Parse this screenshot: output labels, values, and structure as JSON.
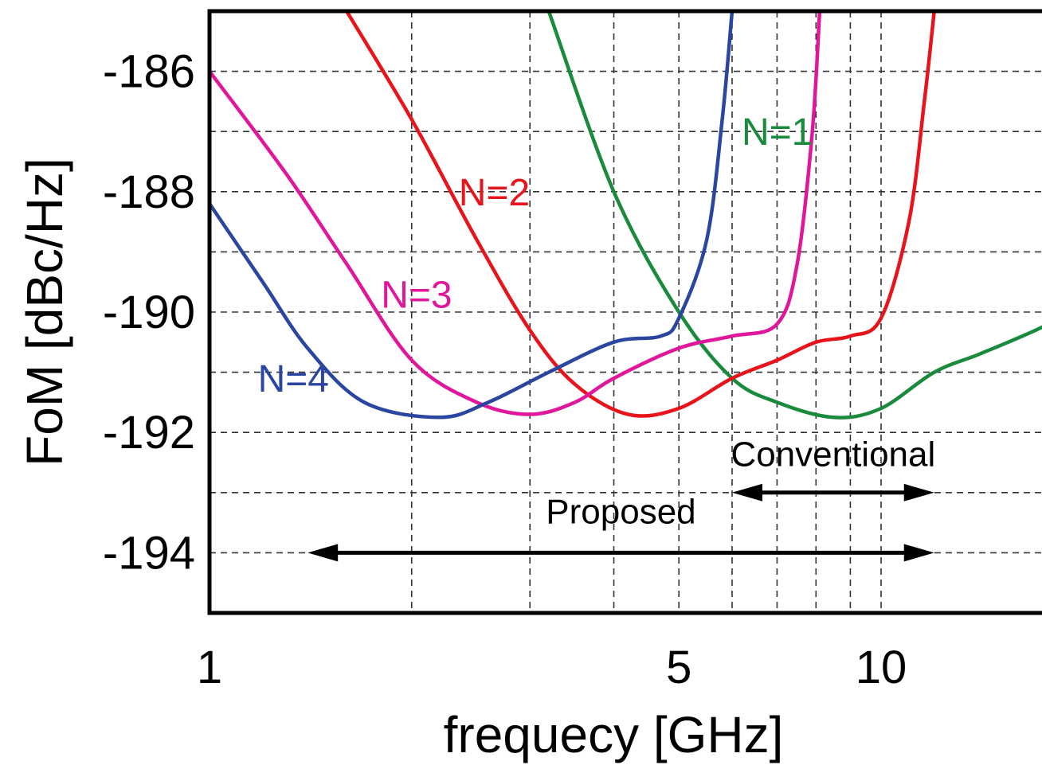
{
  "chart_data": {
    "type": "line",
    "title": "",
    "xlabel": "frequecy [GHz]",
    "ylabel": "FoM [dBc/Hz]",
    "x_scale": "log",
    "xlim": [
      1,
      20
    ],
    "ylim": [
      -195,
      -185
    ],
    "x_ticks": [
      1,
      5,
      10
    ],
    "x_tick_labels": [
      "1",
      "5",
      "10"
    ],
    "x_grid": [
      2,
      3,
      4,
      5,
      6,
      7,
      8,
      9,
      10
    ],
    "y_ticks": [
      -186,
      -188,
      -190,
      -192,
      -194
    ],
    "y_tick_labels": [
      "-186",
      "-188",
      "-190",
      "-192",
      "-194"
    ],
    "y_grid": [
      -186,
      -187,
      -188,
      -189,
      -190,
      -191,
      -192,
      -193,
      -194
    ],
    "grid": true,
    "series": [
      {
        "name": "N=1",
        "color": "#1a8a3c",
        "label_pos": {
          "x": 6.2,
          "y": -187.0
        },
        "points": [
          [
            3.2,
            -185
          ],
          [
            4,
            -188
          ],
          [
            5,
            -190
          ],
          [
            6,
            -191.1
          ],
          [
            7,
            -191.5
          ],
          [
            8.5,
            -191.75
          ],
          [
            10,
            -191.6
          ],
          [
            12,
            -191
          ],
          [
            14,
            -190.7
          ],
          [
            17,
            -190.3
          ],
          [
            20,
            -189.9
          ]
        ]
      },
      {
        "name": "N=2",
        "color": "#e8141b",
        "label_pos": {
          "x": 2.35,
          "y": -188.0
        },
        "points": [
          [
            1.6,
            -185
          ],
          [
            2,
            -186.8
          ],
          [
            2.5,
            -188.8
          ],
          [
            3,
            -190.3
          ],
          [
            3.5,
            -191.2
          ],
          [
            4.2,
            -191.7
          ],
          [
            5,
            -191.6
          ],
          [
            6,
            -191.1
          ],
          [
            7,
            -190.8
          ],
          [
            8,
            -190.5
          ],
          [
            9,
            -190.4
          ],
          [
            10,
            -190.1
          ],
          [
            11,
            -188.5
          ],
          [
            11.6,
            -186.5
          ],
          [
            12,
            -185
          ]
        ]
      },
      {
        "name": "N=3",
        "color": "#e0179b",
        "label_pos": {
          "x": 1.8,
          "y": -189.7
        },
        "points": [
          [
            1,
            -186
          ],
          [
            1.3,
            -187.7
          ],
          [
            1.6,
            -189.2
          ],
          [
            2,
            -190.8
          ],
          [
            2.5,
            -191.5
          ],
          [
            3,
            -191.7
          ],
          [
            3.5,
            -191.5
          ],
          [
            4,
            -191.1
          ],
          [
            5,
            -190.6
          ],
          [
            6,
            -190.4
          ],
          [
            7,
            -190.2
          ],
          [
            7.5,
            -189.2
          ],
          [
            7.9,
            -187
          ],
          [
            8.1,
            -185
          ]
        ]
      },
      {
        "name": "N=4",
        "color": "#2a46a0",
        "label_pos": {
          "x": 1.18,
          "y": -191.1
        },
        "points": [
          [
            1,
            -188.2
          ],
          [
            1.2,
            -189.5
          ],
          [
            1.4,
            -190.6
          ],
          [
            1.7,
            -191.5
          ],
          [
            2.2,
            -191.75
          ],
          [
            2.6,
            -191.5
          ],
          [
            3.2,
            -191
          ],
          [
            4,
            -190.5
          ],
          [
            4.7,
            -190.4
          ],
          [
            5,
            -190.1
          ],
          [
            5.5,
            -188.8
          ],
          [
            5.8,
            -186.8
          ],
          [
            6,
            -185
          ]
        ]
      }
    ],
    "annotations": [
      {
        "text": "Conventional",
        "x_from": 6,
        "x_to": 12,
        "y": -193,
        "label_y": -192.35
      },
      {
        "text": "Proposed",
        "x_from": 1.4,
        "x_to": 12,
        "y": -194,
        "label_y": -193.3
      }
    ]
  }
}
